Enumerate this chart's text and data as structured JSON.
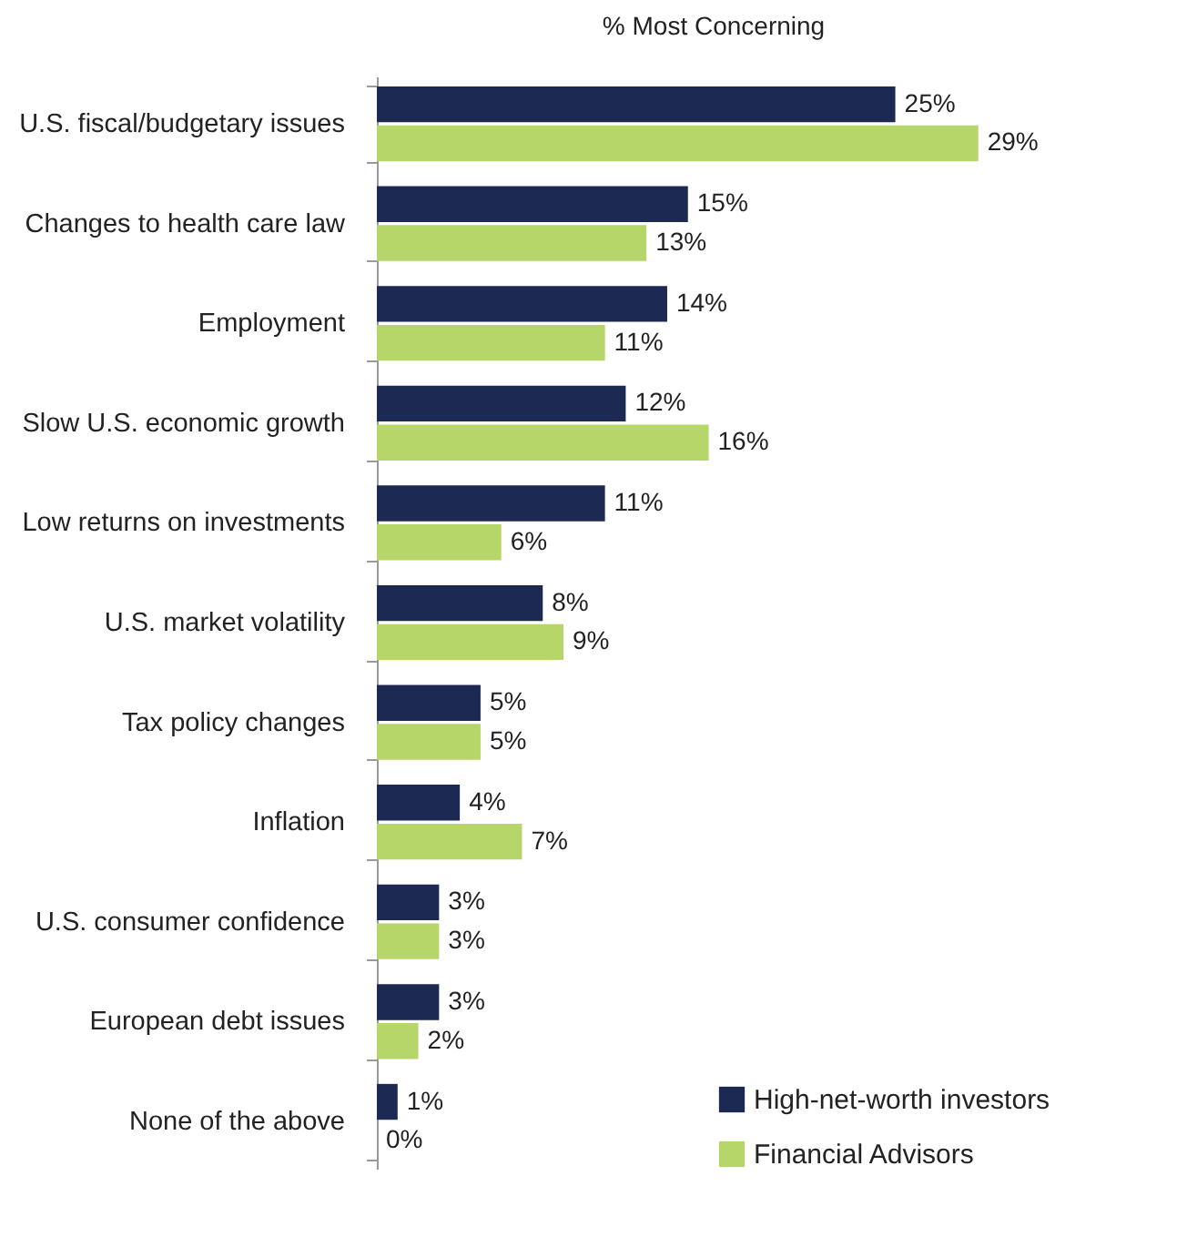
{
  "chart_data": {
    "type": "bar",
    "orientation": "horizontal",
    "title": "% Most Concerning",
    "categories": [
      "U.S. fiscal/budgetary issues",
      "Changes to health care law",
      "Employment",
      "Slow U.S. economic growth",
      "Low returns on investments",
      "U.S. market volatility",
      "Tax policy changes",
      "Inflation",
      "U.S. consumer confidence",
      "European debt issues",
      "None of the above"
    ],
    "series": [
      {
        "name": "High-net-worth investors",
        "color": "#1c2952",
        "values": [
          25,
          15,
          14,
          12,
          11,
          8,
          5,
          4,
          3,
          3,
          1
        ],
        "value_labels": [
          "25%",
          "15%",
          "14%",
          "12%",
          "11%",
          "8%",
          "5%",
          "4%",
          "3%",
          "3%",
          "1%"
        ]
      },
      {
        "name": "Financial Advisors",
        "color": "#b6d66a",
        "values": [
          29,
          13,
          11,
          16,
          6,
          9,
          5,
          7,
          3,
          2,
          0
        ],
        "value_labels": [
          "29%",
          "13%",
          "11%",
          "16%",
          "6%",
          "9%",
          "5%",
          "7%",
          "3%",
          "2%",
          "0%"
        ]
      }
    ],
    "legend": "bottom right"
  }
}
